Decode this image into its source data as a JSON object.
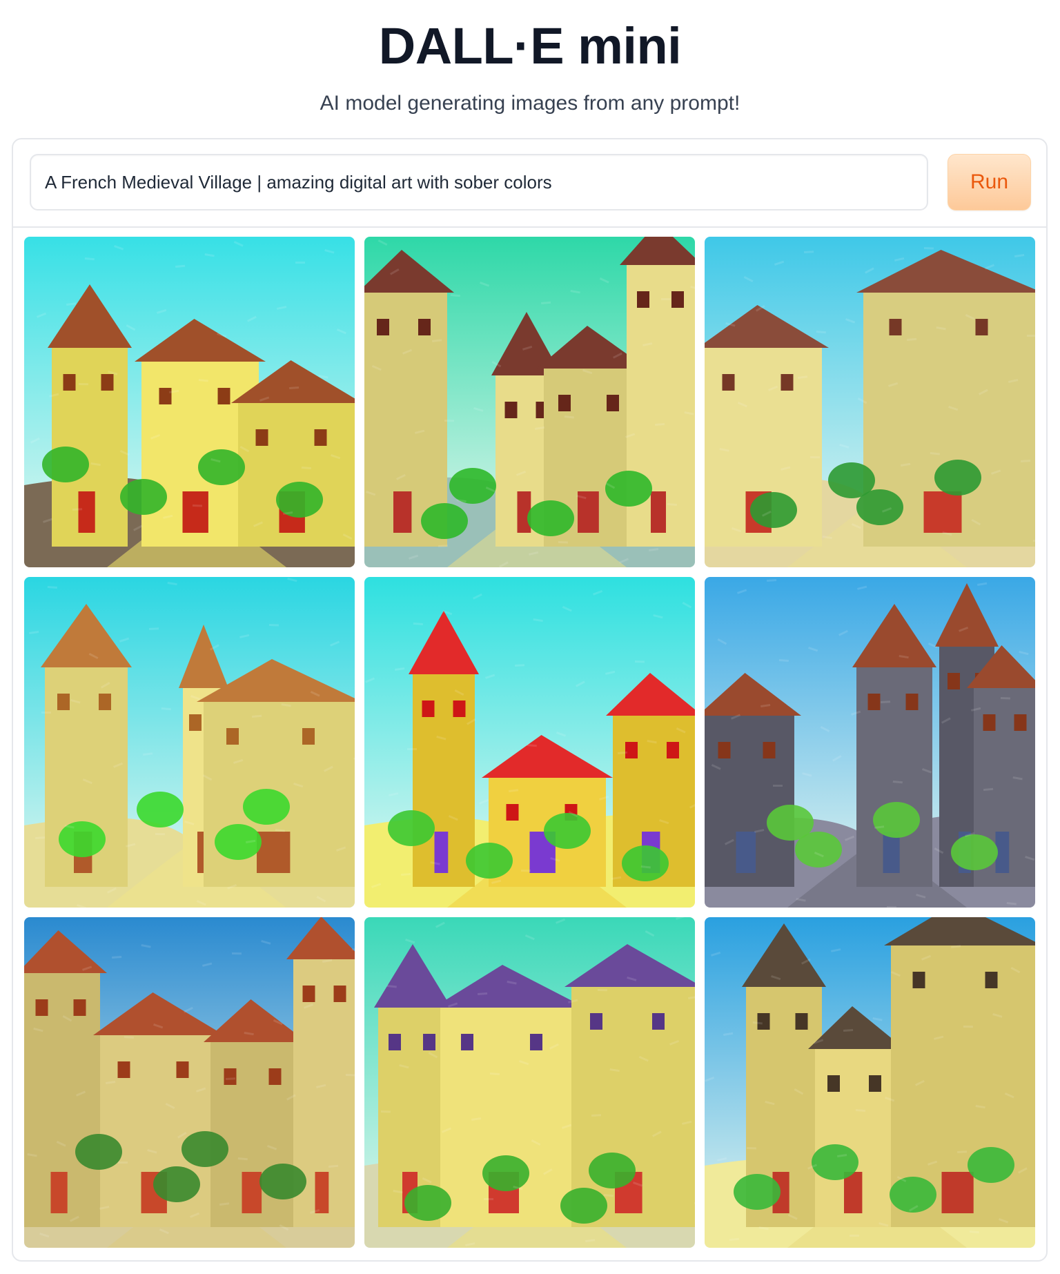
{
  "header": {
    "title": "DALL·E mini",
    "subtitle": "AI model generating images from any prompt!"
  },
  "prompt": {
    "value": "A French Medieval Village | amazing digital art with sober colors"
  },
  "run_button": {
    "label": "Run"
  },
  "colors": {
    "accent_text": "#ea580c",
    "accent_bg": "#fdc999",
    "border": "#e5e7eb"
  },
  "gallery": {
    "image_count": 9,
    "columns": 3,
    "images": [
      {
        "sky": "#37e0e6",
        "wall": "#f2e66a",
        "roof": "#a0502a",
        "accent": "#c62a1a",
        "green": "#33b52a",
        "ground": "#7b6a55"
      },
      {
        "sky": "#2ed8a8",
        "wall": "#e8dc8a",
        "roof": "#7a3a2e",
        "accent": "#b8322a",
        "green": "#2fb82a",
        "ground": "#9ac0b8"
      },
      {
        "sky": "#3fc8e8",
        "wall": "#eadf92",
        "roof": "#8a4c3a",
        "accent": "#c83a2a",
        "green": "#2e9a32",
        "ground": "#e4d7a0"
      },
      {
        "sky": "#2ad6e2",
        "wall": "#efe38a",
        "roof": "#c07a3a",
        "accent": "#b05a2a",
        "green": "#3cd82e",
        "ground": "#e6dd96"
      },
      {
        "sky": "#2ee0e0",
        "wall": "#f0d040",
        "roof": "#e22a2a",
        "accent": "#7a3ad0",
        "green": "#3cc832",
        "ground": "#f2ee70"
      },
      {
        "sky": "#3aa8e6",
        "wall": "#6a6a78",
        "roof": "#9a4a2e",
        "accent": "#485a8a",
        "green": "#5ac83a",
        "ground": "#8a8a9e"
      },
      {
        "sky": "#2a8ad0",
        "wall": "#dccb80",
        "roof": "#b0502e",
        "accent": "#c8482a",
        "green": "#3a8a2e",
        "ground": "#d8cc9a"
      },
      {
        "sky": "#3ad8b8",
        "wall": "#efe27a",
        "roof": "#6a4a9a",
        "accent": "#d03a2e",
        "green": "#38b02e",
        "ground": "#d8d8b0"
      },
      {
        "sky": "#2aa0e0",
        "wall": "#e8d880",
        "roof": "#5a4a3a",
        "accent": "#c03a2a",
        "green": "#3ab83a",
        "ground": "#f0ea9a"
      }
    ]
  }
}
